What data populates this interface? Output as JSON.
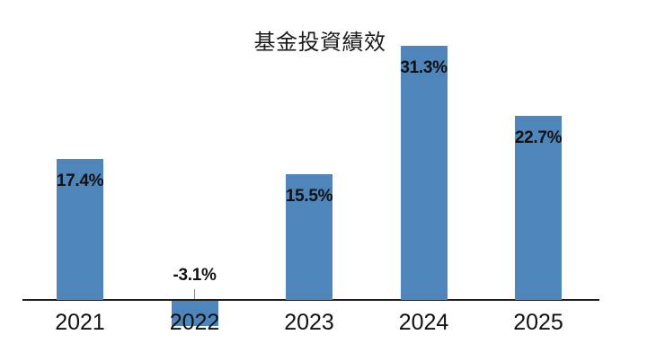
{
  "chart_data": {
    "type": "bar",
    "title": "基金投資績效",
    "categories": [
      "2021",
      "2022",
      "2023",
      "2024",
      "2025"
    ],
    "values": [
      17.4,
      -3.1,
      15.5,
      31.3,
      22.7
    ],
    "value_labels": [
      "17.4%",
      "-3.1%",
      "15.5%",
      "31.3%",
      "22.7%"
    ],
    "xlabel": "",
    "ylabel": "",
    "ylim": [
      -5,
      35
    ],
    "grid": false,
    "legend": "none",
    "bar_color": "#4e86bc",
    "axis_color": "#1f1f1f",
    "label_color": "#111111",
    "tick_color": "#8a8a8a",
    "background_color": "#ffffff"
  }
}
